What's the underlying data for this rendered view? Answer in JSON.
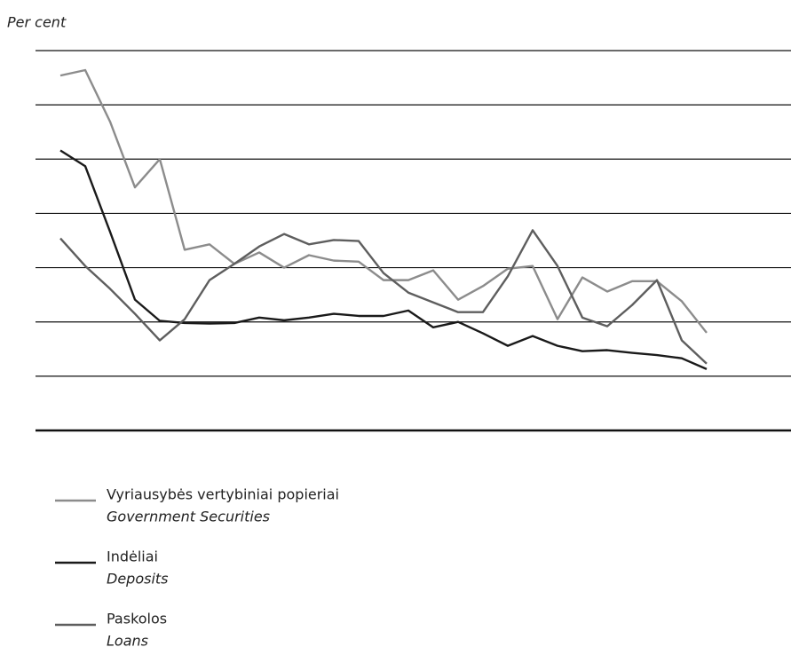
{
  "chart_data": {
    "type": "line",
    "y_label": "Per cent",
    "categories": [
      null,
      null,
      null,
      null,
      null,
      null,
      null,
      null,
      null,
      null,
      null,
      null,
      null,
      null,
      null,
      null,
      null,
      null,
      null,
      null,
      null,
      null,
      null,
      null,
      null,
      null,
      null
    ],
    "series": [
      {
        "name": "Vyriausybės vertybiniai popieriai",
        "name_en": "Government Securities",
        "color": "#8c8c8c",
        "values": [
          6.54,
          6.64,
          5.69,
          4.48,
          5.0,
          3.33,
          3.43,
          3.07,
          3.28,
          3.0,
          3.23,
          3.13,
          3.11,
          2.77,
          2.77,
          2.95,
          2.41,
          2.66,
          2.98,
          3.03,
          2.05,
          2.82,
          2.56,
          2.75,
          2.75,
          2.38,
          1.8
        ]
      },
      {
        "name": "Indėliai",
        "name_en": "Deposits",
        "color": "#1a1a1a",
        "values": [
          5.16,
          4.87,
          3.66,
          2.41,
          2.02,
          1.98,
          1.97,
          1.98,
          2.08,
          2.03,
          2.08,
          2.15,
          2.11,
          2.11,
          2.21,
          1.9,
          2.0,
          1.79,
          1.56,
          1.74,
          1.56,
          1.46,
          1.48,
          1.43,
          1.39,
          1.33,
          1.13
        ]
      },
      {
        "name": "Paskolos",
        "name_en": "Loans",
        "color": "#5e5e5e",
        "values": [
          3.54,
          3.03,
          2.61,
          2.15,
          1.66,
          2.05,
          2.77,
          3.07,
          3.39,
          3.62,
          3.43,
          3.51,
          3.49,
          2.9,
          2.54,
          2.36,
          2.18,
          2.18,
          2.84,
          3.69,
          3.03,
          2.08,
          1.92,
          2.31,
          2.77,
          1.66,
          1.23
        ]
      }
    ],
    "ylim": [
      0,
      7
    ],
    "yticks": [
      0,
      1,
      2,
      3,
      4,
      5,
      6,
      7
    ],
    "grid": true
  }
}
